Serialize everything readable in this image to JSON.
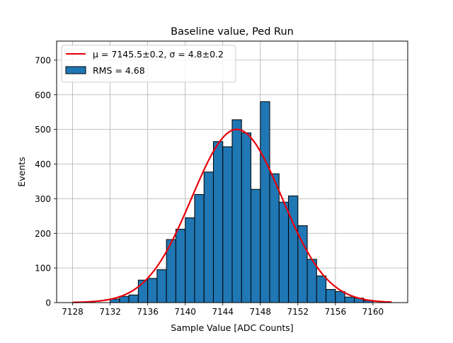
{
  "chart_data": {
    "type": "bar",
    "title": "Baseline value, Ped Run",
    "xlabel": "Sample Value [ADC Counts]",
    "ylabel": "Events",
    "xlim": [
      7126.3,
      7163.7
    ],
    "ylim": [
      0,
      755
    ],
    "xticks": [
      7128,
      7132,
      7136,
      7140,
      7144,
      7148,
      7152,
      7156,
      7160
    ],
    "yticks": [
      0,
      100,
      200,
      300,
      400,
      500,
      600,
      700
    ],
    "grid": true,
    "legend_position": "top-left",
    "bin_edges_start": 7132,
    "bin_width": 1,
    "histogram": [
      {
        "x": 7132,
        "count": 10
      },
      {
        "x": 7133,
        "count": 18
      },
      {
        "x": 7134,
        "count": 22
      },
      {
        "x": 7135,
        "count": 65
      },
      {
        "x": 7136,
        "count": 70
      },
      {
        "x": 7137,
        "count": 95
      },
      {
        "x": 7138,
        "count": 182
      },
      {
        "x": 7139,
        "count": 212
      },
      {
        "x": 7140,
        "count": 245
      },
      {
        "x": 7141,
        "count": 312
      },
      {
        "x": 7142,
        "count": 377
      },
      {
        "x": 7143,
        "count": 465
      },
      {
        "x": 7144,
        "count": 450
      },
      {
        "x": 7145,
        "count": 528
      },
      {
        "x": 7146,
        "count": 490
      },
      {
        "x": 7147,
        "count": 327
      },
      {
        "x": 7148,
        "count": 580
      },
      {
        "x": 7149,
        "count": 372
      },
      {
        "x": 7150,
        "count": 290
      },
      {
        "x": 7151,
        "count": 308
      },
      {
        "x": 7152,
        "count": 222
      },
      {
        "x": 7153,
        "count": 125
      },
      {
        "x": 7154,
        "count": 77
      },
      {
        "x": 7155,
        "count": 38
      },
      {
        "x": 7156,
        "count": 32
      },
      {
        "x": 7157,
        "count": 16
      },
      {
        "x": 7158,
        "count": 13
      },
      {
        "x": 7159,
        "count": 6
      }
    ],
    "fit": {
      "type": "gaussian",
      "amplitude": 500,
      "mean": 7145.5,
      "sigma": 4.8,
      "x_range": [
        7128,
        7162
      ]
    },
    "series": [
      {
        "name": "$\\mu = 7145.5\\pm0.2$, $\\sigma = 4.8\\pm0.2$",
        "display": "μ = 7145.5±0.2, σ = 4.8±0.2",
        "kind": "line",
        "color": "#e8000b"
      },
      {
        "name": "RMS = 4.68",
        "display": "RMS = 4.68",
        "kind": "bar",
        "color": "#1f77b4"
      }
    ]
  }
}
